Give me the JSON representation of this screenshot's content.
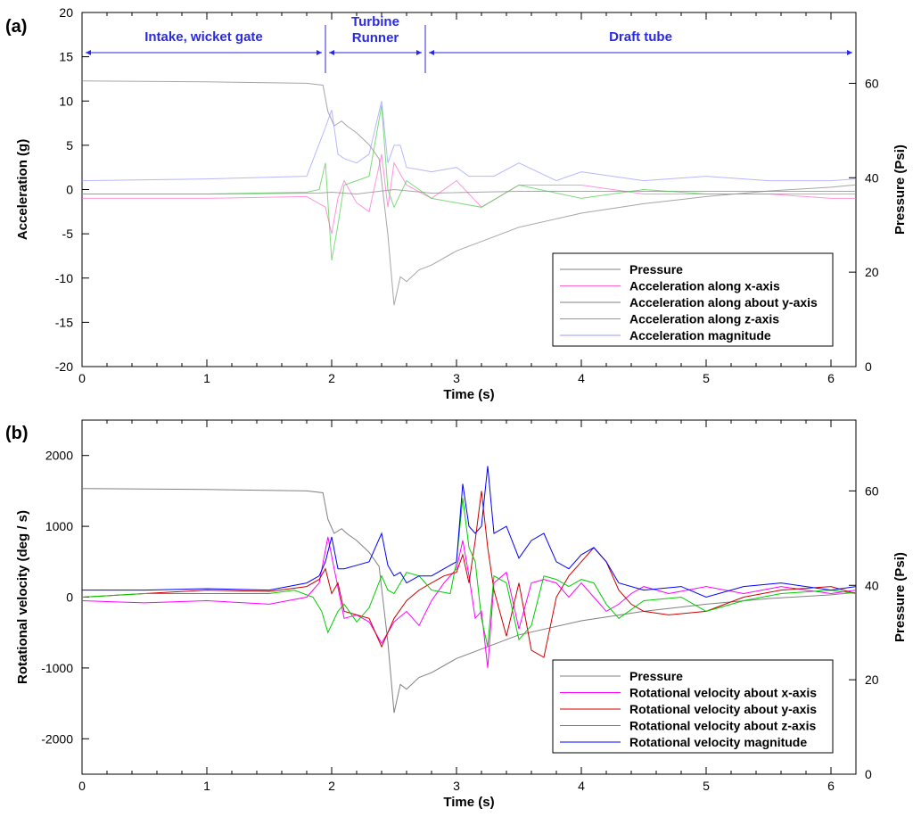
{
  "chart_data": [
    {
      "type": "line",
      "panel_label": "(a)",
      "xlabel": "Time (s)",
      "ylabel": "Acceleration (g)",
      "y2label": "Pressure (Psi)",
      "xlim": [
        0,
        6.2
      ],
      "ylim": [
        -20,
        20
      ],
      "y2lim": [
        0,
        75
      ],
      "x_ticks": [
        "0",
        "1",
        "2",
        "3",
        "4",
        "5",
        "6"
      ],
      "y_ticks": [
        "-20",
        "-15",
        "-10",
        "-5",
        "0",
        "5",
        "10",
        "15",
        "20"
      ],
      "y2_ticks": [
        "0",
        "20",
        "40",
        "60"
      ],
      "grid": false,
      "legend_position": "bottom-right",
      "regions": [
        {
          "label": "Intake, wicket gate",
          "x_range": [
            0,
            1.95
          ]
        },
        {
          "label": "Turbine",
          "label2": "Runner",
          "x_range": [
            1.95,
            2.75
          ]
        },
        {
          "label": "Draft tube",
          "x_range": [
            2.75,
            6.2
          ]
        }
      ],
      "series": [
        {
          "name": "Pressure",
          "axis": "right",
          "color": "#808080",
          "x": [
            0,
            1.0,
            1.8,
            1.93,
            1.97,
            2.02,
            2.08,
            2.12,
            2.2,
            2.3,
            2.38,
            2.45,
            2.5,
            2.55,
            2.6,
            2.7,
            2.8,
            3.0,
            3.5,
            4.0,
            4.5,
            5.0,
            5.5,
            6.0,
            6.2
          ],
          "y": [
            60.5,
            60.3,
            60,
            59.6,
            54,
            51,
            52,
            51,
            49.5,
            47,
            44,
            28,
            13,
            19,
            18,
            20.5,
            21.5,
            24.5,
            29.5,
            32.5,
            34.5,
            36,
            37.2,
            38,
            38.5
          ]
        },
        {
          "name": "Acceleration along x-axis",
          "axis": "left",
          "color": "#ff66cc",
          "x": [
            0,
            1.0,
            1.8,
            1.95,
            2.0,
            2.05,
            2.1,
            2.2,
            2.3,
            2.4,
            2.45,
            2.5,
            2.6,
            2.8,
            3.0,
            3.2,
            3.5,
            4.0,
            4.5,
            5.0,
            5.5,
            6.0,
            6.2
          ],
          "y": [
            -1,
            -1,
            -0.8,
            -2,
            -5,
            -1,
            1,
            -1.5,
            -2.5,
            4,
            -2,
            3,
            0.5,
            -1,
            1,
            -2,
            0.5,
            0.5,
            -0.5,
            -0.5,
            -0.5,
            -1,
            -1
          ]
        },
        {
          "name": "Acceleration along about y-axis",
          "axis": "left",
          "color": "#808080",
          "x": [
            0,
            1.0,
            1.9,
            2.0,
            2.2,
            2.5,
            2.8,
            3.5,
            4.5,
            5.5,
            6.2
          ],
          "y": [
            -0.5,
            -0.5,
            -0.4,
            -0.3,
            -0.5,
            0,
            -0.4,
            -0.2,
            -0.2,
            -0.2,
            -0.2
          ]
        },
        {
          "name": "Acceleration along z-axis",
          "axis": "left",
          "color": "#44cc44",
          "x": [
            0,
            1.0,
            1.8,
            1.9,
            1.95,
            2.0,
            2.05,
            2.1,
            2.2,
            2.3,
            2.4,
            2.45,
            2.5,
            2.6,
            2.8,
            3.0,
            3.2,
            3.5,
            4.0,
            4.5,
            5.0,
            5.5,
            6.0,
            6.2
          ],
          "y": [
            -0.5,
            -0.5,
            -0.3,
            0,
            3,
            -8,
            -4,
            0.5,
            1,
            1.5,
            9.5,
            0,
            -2,
            1,
            -1,
            -1.5,
            -2,
            0.5,
            -1,
            0,
            -0.5,
            -0.5,
            -0.5,
            -0.5
          ]
        },
        {
          "name": "Acceleration magnitude",
          "axis": "left",
          "color": "#9999ff",
          "x": [
            0,
            1.0,
            1.8,
            1.95,
            2.0,
            2.05,
            2.1,
            2.2,
            2.3,
            2.4,
            2.45,
            2.5,
            2.55,
            2.6,
            2.8,
            3.0,
            3.1,
            3.3,
            3.5,
            3.8,
            4.0,
            4.5,
            5.0,
            5.5,
            6.0,
            6.2
          ],
          "y": [
            1,
            1.2,
            1.5,
            7,
            9,
            4,
            3.5,
            3,
            4,
            10,
            3,
            5,
            5,
            2.5,
            2,
            2.5,
            1.5,
            1.5,
            3,
            1,
            2,
            1,
            1.5,
            1,
            1,
            1.2
          ]
        }
      ]
    },
    {
      "type": "line",
      "panel_label": "(b)",
      "xlabel": "Time (s)",
      "ylabel": "Rotational velocity (deg / s)",
      "y2label": "Pressure (Psi)",
      "xlim": [
        0,
        6.2
      ],
      "ylim": [
        -2500,
        2500
      ],
      "y2lim": [
        0,
        75
      ],
      "x_ticks": [
        "0",
        "1",
        "2",
        "3",
        "4",
        "5",
        "6"
      ],
      "y_ticks": [
        "-2000",
        "-1000",
        "0",
        "1000",
        "2000"
      ],
      "y2_ticks": [
        "0",
        "20",
        "40",
        "60"
      ],
      "grid": false,
      "legend_position": "bottom-right",
      "series": [
        {
          "name": "Pressure",
          "axis": "right",
          "color": "#808080",
          "x": [
            0,
            1.0,
            1.8,
            1.93,
            1.97,
            2.02,
            2.08,
            2.12,
            2.2,
            2.3,
            2.38,
            2.45,
            2.5,
            2.55,
            2.6,
            2.7,
            2.8,
            3.0,
            3.5,
            4.0,
            4.5,
            5.0,
            5.5,
            6.0,
            6.2
          ],
          "y": [
            60.5,
            60.3,
            60,
            59.6,
            54,
            51,
            52,
            51,
            49.5,
            47,
            44,
            28,
            13,
            19,
            18,
            20.5,
            21.5,
            24.5,
            29.5,
            32.5,
            34.5,
            36,
            37.2,
            38,
            38.5
          ]
        },
        {
          "name": "Rotational velocity about x-axis",
          "axis": "left",
          "color": "#ff00ff",
          "x": [
            0,
            0.5,
            1.0,
            1.5,
            1.8,
            1.9,
            1.97,
            2.02,
            2.1,
            2.2,
            2.3,
            2.4,
            2.5,
            2.6,
            2.7,
            2.8,
            2.9,
            3.0,
            3.05,
            3.1,
            3.15,
            3.2,
            3.25,
            3.3,
            3.4,
            3.5,
            3.6,
            3.7,
            3.8,
            3.9,
            4.0,
            4.1,
            4.2,
            4.3,
            4.4,
            4.5,
            4.7,
            5.0,
            5.3,
            5.6,
            6.0,
            6.2
          ],
          "y": [
            -50,
            -80,
            -50,
            -100,
            0,
            200,
            850,
            400,
            -300,
            -250,
            -350,
            -650,
            -350,
            -200,
            -400,
            -50,
            200,
            400,
            800,
            300,
            -300,
            -200,
            -1000,
            200,
            350,
            -450,
            200,
            250,
            200,
            0,
            200,
            0,
            -200,
            -100,
            50,
            150,
            50,
            150,
            50,
            150,
            50,
            100
          ]
        },
        {
          "name": "Rotational velocity about y-axis",
          "axis": "left",
          "color": "#cc0000",
          "x": [
            0,
            0.5,
            1.0,
            1.5,
            1.8,
            1.9,
            1.95,
            2.0,
            2.05,
            2.1,
            2.2,
            2.3,
            2.4,
            2.5,
            2.6,
            2.7,
            2.8,
            2.9,
            3.0,
            3.05,
            3.1,
            3.15,
            3.2,
            3.25,
            3.3,
            3.4,
            3.5,
            3.6,
            3.7,
            3.8,
            3.9,
            4.0,
            4.1,
            4.2,
            4.3,
            4.4,
            4.5,
            4.7,
            5.0,
            5.3,
            5.6,
            6.0,
            6.2
          ],
          "y": [
            0,
            50,
            100,
            80,
            150,
            250,
            400,
            50,
            200,
            -200,
            -250,
            -300,
            -700,
            -300,
            -50,
            100,
            200,
            300,
            350,
            600,
            200,
            800,
            1500,
            700,
            100,
            -550,
            200,
            -750,
            -850,
            0,
            300,
            500,
            700,
            500,
            100,
            -100,
            -200,
            -250,
            -200,
            0,
            100,
            150,
            50
          ]
        },
        {
          "name": "Rotational velocity about z-axis",
          "axis": "left",
          "color": "#00cc00",
          "x": [
            0,
            0.5,
            1.0,
            1.5,
            1.7,
            1.85,
            1.92,
            1.97,
            2.05,
            2.1,
            2.2,
            2.3,
            2.4,
            2.45,
            2.5,
            2.6,
            2.7,
            2.8,
            2.95,
            3.0,
            3.05,
            3.1,
            3.15,
            3.2,
            3.25,
            3.3,
            3.4,
            3.5,
            3.6,
            3.7,
            3.8,
            3.9,
            4.0,
            4.1,
            4.2,
            4.3,
            4.5,
            4.8,
            5.0,
            5.3,
            5.6,
            6.0,
            6.2
          ],
          "y": [
            0,
            50,
            50,
            50,
            100,
            0,
            -200,
            -500,
            -200,
            -100,
            -350,
            -150,
            300,
            100,
            50,
            350,
            300,
            100,
            50,
            500,
            1400,
            700,
            500,
            -300,
            -700,
            300,
            200,
            -600,
            -400,
            300,
            250,
            150,
            250,
            200,
            -100,
            -300,
            -50,
            0,
            -200,
            -50,
            50,
            100,
            50
          ]
        },
        {
          "name": "Rotational velocity magnitude",
          "axis": "left",
          "color": "#0000ff",
          "x": [
            0,
            0.5,
            1.0,
            1.5,
            1.8,
            1.9,
            1.95,
            2.0,
            2.05,
            2.1,
            2.2,
            2.3,
            2.4,
            2.45,
            2.5,
            2.55,
            2.6,
            2.7,
            2.8,
            2.9,
            3.0,
            3.05,
            3.1,
            3.15,
            3.2,
            3.25,
            3.3,
            3.4,
            3.5,
            3.6,
            3.7,
            3.8,
            3.9,
            4.0,
            4.1,
            4.2,
            4.3,
            4.5,
            4.8,
            5.0,
            5.3,
            5.6,
            6.0,
            6.2
          ],
          "y": [
            100,
            100,
            120,
            100,
            200,
            300,
            500,
            850,
            400,
            400,
            450,
            500,
            900,
            450,
            300,
            350,
            200,
            300,
            300,
            400,
            500,
            1600,
            1000,
            900,
            1000,
            1850,
            900,
            1000,
            550,
            800,
            900,
            500,
            400,
            600,
            700,
            500,
            200,
            100,
            150,
            0,
            150,
            200,
            100,
            150
          ]
        }
      ]
    }
  ]
}
